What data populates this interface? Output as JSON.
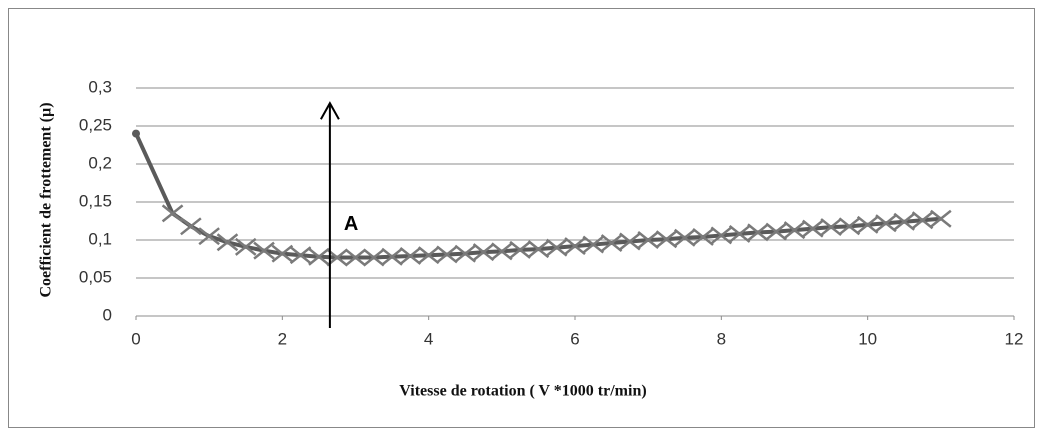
{
  "chart_data": {
    "type": "line",
    "xlabel": "Vitesse de rotation ( V *1000 tr/min)",
    "ylabel": "Coefficient de frottement  (µ)",
    "xlim": [
      0,
      12
    ],
    "xticks": [
      0,
      2,
      4,
      6,
      8,
      10,
      12
    ],
    "ylim": [
      0,
      0.3
    ],
    "yticks": [
      0,
      {
        "value": 0.05,
        "label": "0,05"
      },
      {
        "value": 0.1,
        "label": "0,1"
      },
      {
        "value": 0.15,
        "label": "0,15"
      },
      {
        "value": 0.2,
        "label": "0,2"
      },
      {
        "value": 0.25,
        "label": "0,25"
      },
      {
        "value": 0.3,
        "label": "0,3"
      }
    ],
    "grid": true,
    "series": [
      {
        "color": "#5a5a5a",
        "x": [
          0,
          0.5,
          0.75,
          1,
          1.25,
          1.5,
          1.75,
          2,
          2.25,
          2.5,
          2.75,
          3,
          3.25,
          3.5,
          3.75,
          4,
          4.25,
          4.5,
          4.75,
          5,
          5.25,
          5.5,
          5.75,
          6,
          6.25,
          6.5,
          6.75,
          7,
          7.25,
          7.5,
          7.75,
          8,
          8.25,
          8.5,
          8.75,
          9,
          9.25,
          9.5,
          9.75,
          10,
          10.25,
          10.5,
          10.75,
          11
        ],
        "values": [
          0.24,
          0.135,
          0.118,
          0.105,
          0.097,
          0.091,
          0.086,
          0.082,
          0.08,
          0.078,
          0.077,
          0.077,
          0.077,
          0.078,
          0.079,
          0.08,
          0.081,
          0.082,
          0.084,
          0.085,
          0.087,
          0.088,
          0.09,
          0.092,
          0.094,
          0.096,
          0.098,
          0.1,
          0.101,
          0.103,
          0.104,
          0.106,
          0.108,
          0.11,
          0.111,
          0.113,
          0.115,
          0.117,
          0.118,
          0.12,
          0.122,
          0.124,
          0.126,
          0.128
        ]
      }
    ],
    "annotations": [
      {
        "text": "A",
        "x": 2.65,
        "y": 0.28
      }
    ]
  }
}
